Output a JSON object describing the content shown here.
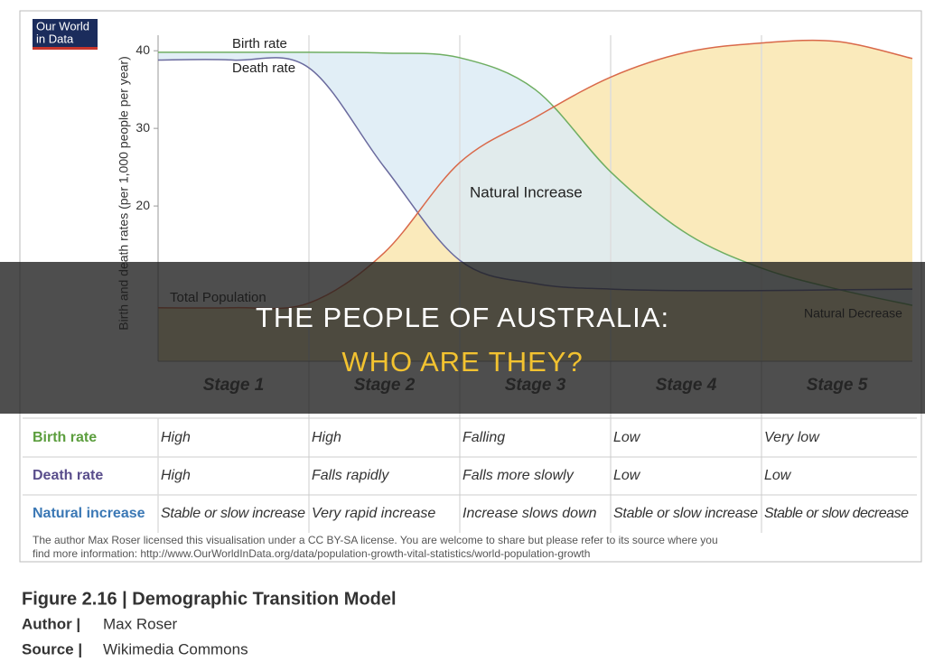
{
  "logo": [
    "Our World",
    "in Data"
  ],
  "chart_data": {
    "type": "line",
    "y_label": "Birth and death rates (per 1,000 people per year)",
    "categories": [
      "Stage 1",
      "Stage 2",
      "Stage 3",
      "Stage 4",
      "Stage 5"
    ],
    "xlim": [
      0,
      5
    ],
    "ylim": [
      0,
      42
    ],
    "yticks": [
      20,
      30,
      40
    ],
    "grid": false,
    "x": [
      0,
      0.5,
      1,
      1.5,
      2,
      2.5,
      3,
      3.5,
      4,
      4.5,
      5
    ],
    "series": [
      {
        "name": "Birth rate",
        "color": "#6fae62",
        "values": [
          39.8,
          39.8,
          39.8,
          39.7,
          39.1,
          35,
          24.4,
          16.5,
          12,
          9.3,
          7.2
        ]
      },
      {
        "name": "Death rate",
        "color": "#6a6a9e",
        "values": [
          38.8,
          38.8,
          37.8,
          25,
          13,
          10,
          9.3,
          9.1,
          9.1,
          9.2,
          9.3
        ]
      },
      {
        "name": "Total Population",
        "color": "#d9694a",
        "values": [
          6.9,
          6.9,
          7.5,
          14,
          25.6,
          31.4,
          36.6,
          39.8,
          41,
          41.2,
          39
        ]
      }
    ],
    "annotations": [
      "Natural Increase",
      "Natural Decrease"
    ]
  },
  "table": {
    "rows": [
      {
        "label": "Birth rate",
        "color": "#5c9e3e",
        "cells": [
          "High",
          "High",
          "Falling",
          "Low",
          "Very low"
        ]
      },
      {
        "label": "Death rate",
        "color": "#5a4e8c",
        "cells": [
          "High",
          "Falls rapidly",
          "Falls more slowly",
          "Low",
          "Low"
        ]
      },
      {
        "label": "Natural increase",
        "color": "#3b78b5",
        "cells": [
          "Stable or slow increase",
          "Very rapid increase",
          "Increase slows down",
          "Stable or slow increase",
          "Stable or slow decrease"
        ]
      }
    ]
  },
  "license": [
    "The author Max Roser licensed this visualisation under a CC BY-SA license. You are welcome to share but please refer to its source where you",
    "find more information: http://www.OurWorldInData.org/data/population-growth-vital-statistics/world-population-growth"
  ],
  "caption": {
    "title": "Figure 2.16 | Demographic Transition Model",
    "author_label": "Author |",
    "author": "Max Roser",
    "source_label": "Source |",
    "source": "Wikimedia Commons"
  },
  "banner": [
    "THE PEOPLE OF AUSTRALIA:",
    "WHO ARE THEY?"
  ]
}
